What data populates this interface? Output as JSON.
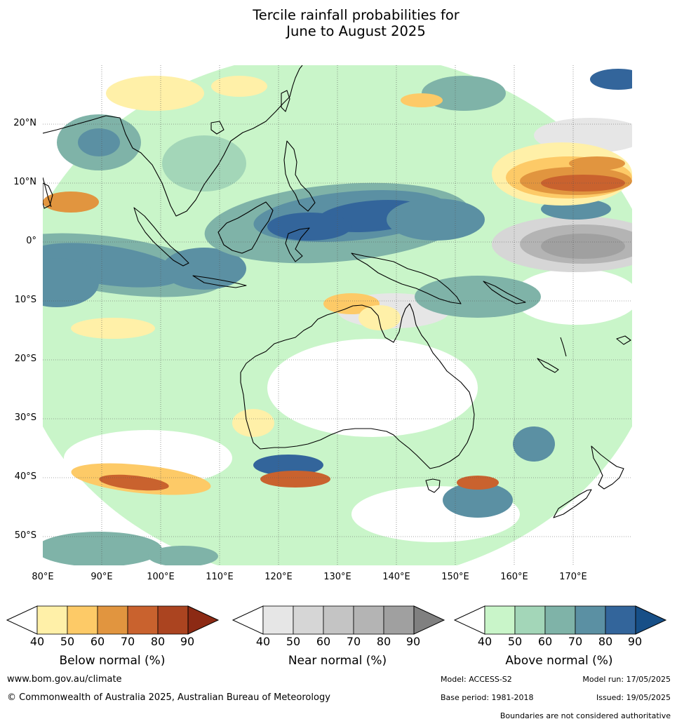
{
  "title_line1": "Tercile rainfall probabilities for",
  "title_line2": "June to August 2025",
  "map": {
    "lat_labels": [
      "20°N",
      "10°N",
      "0°",
      "10°S",
      "20°S",
      "30°S",
      "40°S",
      "50°S"
    ],
    "lon_labels": [
      "80°E",
      "90°E",
      "100°E",
      "110°E",
      "120°E",
      "130°E",
      "140°E",
      "150°E",
      "160°E",
      "170°E"
    ],
    "colors": {
      "above": [
        "#c9f5c9",
        "#a3d6b8",
        "#7fb3a8",
        "#5b90a3",
        "#33659b",
        "#174f87"
      ],
      "below": [
        "#fff0a8",
        "#fdca67",
        "#e1953f",
        "#c9622e",
        "#ab4420",
        "#8c2a14"
      ],
      "near": [
        "#e6e6e6",
        "#d6d6d6",
        "#c4c4c4",
        "#b4b4b4",
        "#a0a0a0",
        "#808080"
      ]
    }
  },
  "legends": [
    {
      "title": "Below normal (%)",
      "ticks": [
        "40",
        "50",
        "60",
        "70",
        "80",
        "90"
      ],
      "colors": [
        "#fff0a8",
        "#fdca67",
        "#e1953f",
        "#c9622e",
        "#ab4420",
        "#8c2a14"
      ]
    },
    {
      "title": "Near normal (%)",
      "ticks": [
        "40",
        "50",
        "60",
        "70",
        "80",
        "90"
      ],
      "colors": [
        "#e6e6e6",
        "#d6d6d6",
        "#c4c4c4",
        "#b4b4b4",
        "#a0a0a0",
        "#808080"
      ]
    },
    {
      "title": "Above normal (%)",
      "ticks": [
        "40",
        "50",
        "60",
        "70",
        "80",
        "90"
      ],
      "colors": [
        "#c9f5c9",
        "#a3d6b8",
        "#7fb3a8",
        "#5b90a3",
        "#33659b",
        "#174f87"
      ]
    }
  ],
  "footer": {
    "website": "www.bom.gov.au/climate",
    "copyright": "© Commonwealth of Australia 2025, Australian Bureau of Meteorology",
    "model": "Model: ACCESS-S2",
    "model_run": "Model run: 17/05/2025",
    "base_period": "Base period: 1981-2018",
    "issued": "Issued: 19/05/2025",
    "disclaimer": "Boundaries are not considered authoritative"
  }
}
